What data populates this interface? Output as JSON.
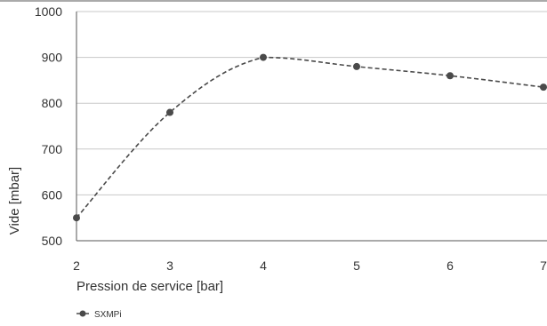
{
  "chart_data": {
    "type": "line",
    "title": "",
    "xlabel": "Pression de service [bar]",
    "ylabel": "Vide [mbar]",
    "x": [
      2,
      3,
      4,
      5,
      6,
      7
    ],
    "x_tick_labels": [
      "2",
      "3",
      "4",
      "5",
      "6",
      "7"
    ],
    "y_tick_labels": [
      "500",
      "600",
      "700",
      "800",
      "900",
      "1000"
    ],
    "xlim": [
      2,
      7
    ],
    "ylim": [
      500,
      1000
    ],
    "grid": "horizontal",
    "smooth": true,
    "legend_position": "bottom-left",
    "series": [
      {
        "name": "SXMPi",
        "color": "#4a4a4a",
        "line_style": "dashed",
        "marker": "circle",
        "values": [
          550,
          780,
          900,
          880,
          860,
          835
        ]
      }
    ]
  }
}
